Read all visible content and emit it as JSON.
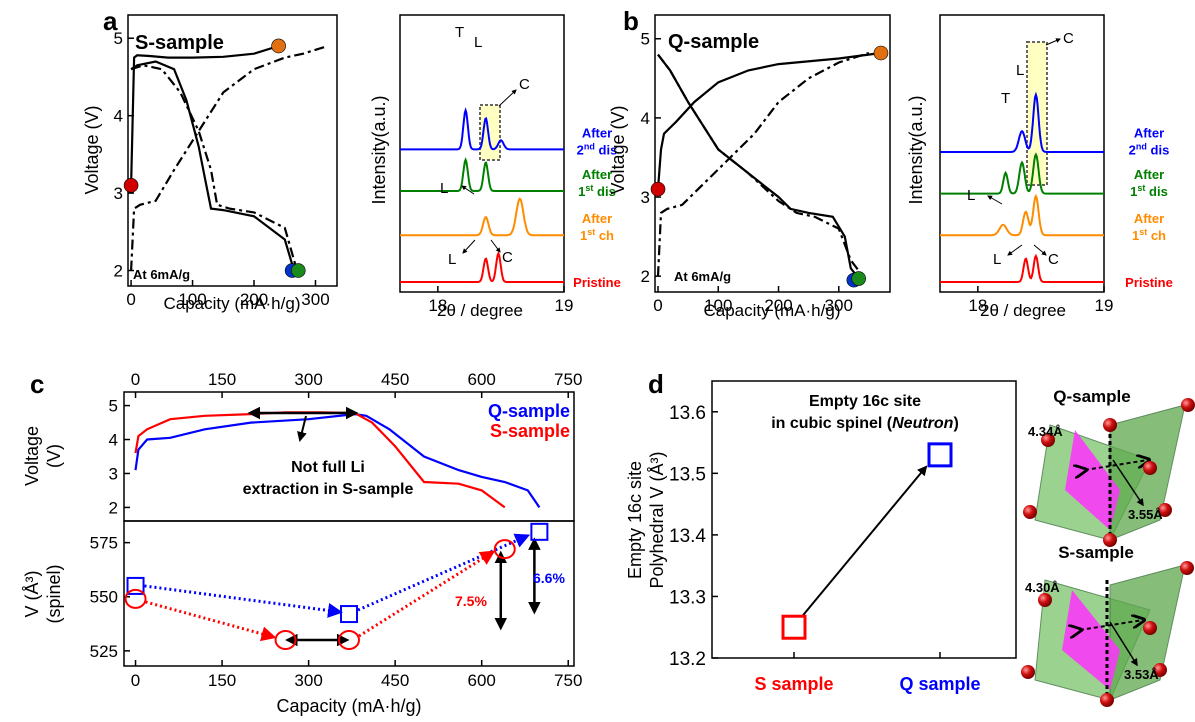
{
  "panels": {
    "a": {
      "letter": "a",
      "sample_label": "S-sample",
      "note": "At 6mA/g",
      "xlabel": "Capacity (mA·h/g)",
      "ylabel": "Voltage (V)",
      "xticks": [
        "0",
        "100",
        "200",
        "300"
      ],
      "yticks": [
        "2",
        "3",
        "4",
        "5"
      ]
    },
    "a_xrd": {
      "ylabel": "Intensity(a.u.)",
      "xlabel": "2θ / degree",
      "xticks": [
        "18",
        "19"
      ],
      "peak_labels": {
        "T": "T",
        "L": "L",
        "C": "C"
      },
      "traces": [
        {
          "label1": "After",
          "label2": "2",
          "sup": "nd",
          "label3": " dis",
          "color": "#0000ff"
        },
        {
          "label1": "After",
          "label2": "1",
          "sup": "st",
          "label3": " dis",
          "color": "#008000"
        },
        {
          "label1": "After",
          "label2": "1",
          "sup": "st",
          "label3": " ch",
          "color": "#ff8c00"
        },
        {
          "label1": "Pristine",
          "label2": "",
          "sup": "",
          "label3": "",
          "color": "#ff0000"
        }
      ]
    },
    "b": {
      "letter": "b",
      "sample_label": "Q-sample",
      "note": "At 6mA/g",
      "xlabel": "Capacity (mA·h/g)",
      "ylabel": "Voltage (V)",
      "xticks": [
        "0",
        "100",
        "200",
        "300"
      ],
      "yticks": [
        "2",
        "3",
        "4",
        "5"
      ]
    },
    "b_xrd": {
      "ylabel": "Intensity(a.u.)",
      "xlabel": "2θ / degree",
      "xticks": [
        "18",
        "19"
      ],
      "peak_labels": {
        "T": "T",
        "L": "L",
        "C": "C"
      },
      "traces": [
        {
          "label1": "After",
          "label2": "2",
          "sup": "nd",
          "label3": " dis",
          "color": "#0000ff"
        },
        {
          "label1": "After",
          "label2": "1",
          "sup": "st",
          "label3": " dis",
          "color": "#008000"
        },
        {
          "label1": "After",
          "label2": "1",
          "sup": "st",
          "label3": " ch",
          "color": "#ff8c00"
        },
        {
          "label1": "Pristine",
          "label2": "",
          "sup": "",
          "label3": "",
          "color": "#ff0000"
        }
      ]
    },
    "c": {
      "letter": "c",
      "top_xticks": [
        "0",
        "150",
        "300",
        "450",
        "600",
        "750"
      ],
      "bottom_xticks": [
        "0",
        "150",
        "300",
        "450",
        "600",
        "750"
      ],
      "xlabel": "Capacity (mA·h/g)",
      "upper_ylabel1": "Voltage",
      "upper_ylabel2": "(V)",
      "upper_yticks": [
        "2",
        "3",
        "4",
        "5"
      ],
      "lower_ylabel1": "V (Å³)",
      "lower_ylabel2": "(spinel)",
      "lower_yticks": [
        "525",
        "550",
        "575"
      ],
      "legend": [
        {
          "name": "Q-sample",
          "color": "#0000ff"
        },
        {
          "name": "S-sample",
          "color": "#ff0000"
        }
      ],
      "annotation1": "Not full Li",
      "annotation2": "extraction in S-sample",
      "pct_s": "7.5%",
      "pct_q": "6.6%"
    },
    "d": {
      "letter": "d",
      "title1": "Empty 16c site",
      "title2a": "in cubic spinel (",
      "title2b": "Neutron",
      "title2c": ")",
      "ylabel1": "Empty 16c site",
      "ylabel2": "Polyhedral V (Å³)",
      "yticks": [
        "13.2",
        "13.3",
        "13.4",
        "13.5",
        "13.6"
      ],
      "categories": [
        "S sample",
        "Q sample"
      ],
      "cat_colors": [
        "#ff0000",
        "#0000ff"
      ]
    },
    "struct_q": {
      "label": "Q-sample",
      "d1": "4.34Å",
      "d2": "3.55Å",
      "color": "#0000ff"
    },
    "struct_s": {
      "label": "S-sample",
      "d1": "4.30Å",
      "d2": "3.53Å",
      "color": "#ff0000"
    }
  },
  "chart_data": [
    {
      "type": "line",
      "panel": "a",
      "xlabel": "Capacity (mA·h/g)",
      "ylabel": "Voltage (V)",
      "xlim": [
        -5,
        335
      ],
      "ylim": [
        1.8,
        5.3
      ],
      "series": [
        {
          "style": "solid",
          "x": [
            0,
            5,
            10,
            30,
            60,
            100,
            150,
            200,
            240
          ],
          "y": [
            3.1,
            4.75,
            4.78,
            4.77,
            4.75,
            4.75,
            4.76,
            4.8,
            4.9
          ]
        },
        {
          "style": "solid",
          "x": [
            0,
            10,
            40,
            70,
            90,
            110,
            120,
            130,
            150,
            200,
            250,
            265
          ],
          "y": [
            4.6,
            4.65,
            4.7,
            4.6,
            4.2,
            3.6,
            3.2,
            2.8,
            2.78,
            2.7,
            2.4,
            2.0
          ]
        },
        {
          "style": "dashdot",
          "x": [
            0,
            5,
            15,
            40,
            70,
            110,
            150,
            200,
            250,
            280,
            300,
            320
          ],
          "y": [
            2.0,
            2.8,
            2.85,
            2.9,
            3.3,
            3.8,
            4.3,
            4.6,
            4.75,
            4.8,
            4.85,
            4.9
          ]
        },
        {
          "style": "dashdot",
          "x": [
            0,
            20,
            50,
            80,
            110,
            130,
            140,
            160,
            200,
            250,
            270
          ],
          "y": [
            4.6,
            4.65,
            4.6,
            4.3,
            3.8,
            3.3,
            2.85,
            2.8,
            2.75,
            2.55,
            2.0
          ]
        }
      ],
      "markers": [
        {
          "x": 0,
          "y": 3.1,
          "color": "#d00000"
        },
        {
          "x": 240,
          "y": 4.9,
          "color": "#e07010"
        },
        {
          "x": 262,
          "y": 2.0,
          "color": "#0033cc"
        },
        {
          "x": 272,
          "y": 2.0,
          "color": "#1a8a1a"
        }
      ]
    },
    {
      "type": "line",
      "panel": "a_xrd",
      "xlabel": "2θ / degree",
      "ylabel": "Intensity(a.u.)",
      "xlim": [
        17.7,
        19.0
      ],
      "series": [
        {
          "name": "Pristine",
          "offset": 0,
          "peaks": [
            {
              "x": 18.38,
              "h": 0.9,
              "w": 0.025
            },
            {
              "x": 18.48,
              "h": 1.1,
              "w": 0.025
            }
          ]
        },
        {
          "name": "After 1st ch",
          "offset": 1.8,
          "peaks": [
            {
              "x": 18.38,
              "h": 0.7,
              "w": 0.03
            },
            {
              "x": 18.65,
              "h": 1.4,
              "w": 0.04
            }
          ]
        },
        {
          "name": "After 1st dis",
          "offset": 3.5,
          "peaks": [
            {
              "x": 18.22,
              "h": 1.2,
              "w": 0.025
            },
            {
              "x": 18.38,
              "h": 1.1,
              "w": 0.025
            }
          ]
        },
        {
          "name": "After 2nd dis",
          "offset": 5.1,
          "peaks": [
            {
              "x": 18.22,
              "h": 1.5,
              "w": 0.025
            },
            {
              "x": 18.38,
              "h": 1.2,
              "w": 0.025
            },
            {
              "x": 18.5,
              "h": 0.35,
              "w": 0.03
            }
          ]
        }
      ]
    },
    {
      "type": "line",
      "panel": "b",
      "xlabel": "Capacity (mA·h/g)",
      "ylabel": "Voltage (V)",
      "xlim": [
        -5,
        385
      ],
      "ylim": [
        1.8,
        5.3
      ],
      "series": [
        {
          "style": "solid",
          "x": [
            0,
            5,
            10,
            30,
            60,
            100,
            150,
            200,
            300,
            370
          ],
          "y": [
            3.1,
            3.6,
            3.8,
            3.95,
            4.2,
            4.45,
            4.6,
            4.68,
            4.75,
            4.82
          ]
        },
        {
          "style": "solid",
          "x": [
            0,
            5,
            20,
            50,
            100,
            150,
            200,
            220,
            250,
            290,
            310,
            320,
            330
          ],
          "y": [
            4.8,
            4.75,
            4.6,
            4.2,
            3.6,
            3.3,
            3.0,
            2.85,
            2.8,
            2.75,
            2.5,
            2.1,
            2.0
          ]
        },
        {
          "style": "dashdot",
          "x": [
            0,
            5,
            15,
            40,
            80,
            120,
            160,
            200,
            250,
            300,
            350
          ],
          "y": [
            2.0,
            2.8,
            2.85,
            2.9,
            3.2,
            3.5,
            3.8,
            4.2,
            4.5,
            4.7,
            4.82
          ]
        },
        {
          "style": "dashdot",
          "x": [
            0,
            20,
            50,
            100,
            150,
            200,
            230,
            260,
            300,
            320,
            340
          ],
          "y": [
            4.8,
            4.6,
            4.2,
            3.6,
            3.3,
            2.95,
            2.8,
            2.75,
            2.6,
            2.2,
            2.0
          ]
        }
      ],
      "markers": [
        {
          "x": 0,
          "y": 3.1,
          "color": "#d00000"
        },
        {
          "x": 370,
          "y": 4.82,
          "color": "#e07010"
        },
        {
          "x": 325,
          "y": 1.95,
          "color": "#0033cc"
        },
        {
          "x": 333,
          "y": 1.97,
          "color": "#1a8a1a"
        }
      ]
    },
    {
      "type": "line",
      "panel": "b_xrd",
      "xlabel": "2θ / degree",
      "ylabel": "Intensity(a.u.)",
      "xlim": [
        17.7,
        19.0
      ],
      "series": [
        {
          "name": "Pristine",
          "offset": 0,
          "peaks": [
            {
              "x": 18.38,
              "h": 0.9,
              "w": 0.025
            },
            {
              "x": 18.46,
              "h": 1.0,
              "w": 0.025
            }
          ]
        },
        {
          "name": "After 1st ch",
          "offset": 1.8,
          "peaks": [
            {
              "x": 18.2,
              "h": 0.4,
              "w": 0.04
            },
            {
              "x": 18.38,
              "h": 0.9,
              "w": 0.03
            },
            {
              "x": 18.46,
              "h": 1.5,
              "w": 0.03
            }
          ]
        },
        {
          "name": "After 1st dis",
          "offset": 3.4,
          "peaks": [
            {
              "x": 18.22,
              "h": 0.8,
              "w": 0.025
            },
            {
              "x": 18.35,
              "h": 1.2,
              "w": 0.03
            },
            {
              "x": 18.46,
              "h": 1.5,
              "w": 0.03
            }
          ]
        },
        {
          "name": "After 2nd dis",
          "offset": 5.0,
          "peaks": [
            {
              "x": 18.35,
              "h": 0.8,
              "w": 0.035
            },
            {
              "x": 18.46,
              "h": 2.2,
              "w": 0.03
            }
          ]
        }
      ]
    },
    {
      "type": "line",
      "panel": "c-voltage",
      "ylabel": "Voltage (V)",
      "xlim": [
        -20,
        760
      ],
      "ylim": [
        1.6,
        5.4
      ],
      "series": [
        {
          "name": "Q-sample",
          "color": "#0000ff",
          "x": [
            0,
            5,
            20,
            60,
            120,
            200,
            300,
            380,
            400,
            440,
            500,
            560,
            600,
            640,
            680,
            700
          ],
          "y": [
            3.1,
            3.7,
            4.0,
            4.05,
            4.3,
            4.5,
            4.6,
            4.75,
            4.7,
            4.3,
            3.5,
            3.1,
            2.9,
            2.75,
            2.5,
            2.0
          ]
        },
        {
          "name": "S-sample",
          "color": "#ff0000",
          "x": [
            0,
            5,
            20,
            60,
            120,
            200,
            260,
            320,
            380,
            410,
            450,
            500,
            560,
            600,
            640
          ],
          "y": [
            3.6,
            4.1,
            4.3,
            4.6,
            4.7,
            4.75,
            4.8,
            4.8,
            4.78,
            4.5,
            3.8,
            2.75,
            2.7,
            2.5,
            2.0
          ]
        }
      ]
    },
    {
      "type": "scatter",
      "panel": "c-volume",
      "ylabel": "V (Å³) (spinel)",
      "xlim": [
        -20,
        760
      ],
      "ylim": [
        518,
        585
      ],
      "series": [
        {
          "name": "Q-sample",
          "color": "#0000ff",
          "x": [
            0,
            370,
            700
          ],
          "y": [
            555,
            542,
            580
          ]
        },
        {
          "name": "S-sample",
          "color": "#ff0000",
          "x": [
            0,
            260,
            370,
            640
          ],
          "y": [
            549,
            530,
            530,
            572
          ]
        }
      ]
    },
    {
      "type": "scatter",
      "panel": "d",
      "categories": [
        "S sample",
        "Q sample"
      ],
      "values": [
        13.25,
        13.53
      ],
      "ylabel": "Empty 16c site Polyhedral V (Å³)",
      "ylim": [
        13.2,
        13.65
      ]
    }
  ]
}
